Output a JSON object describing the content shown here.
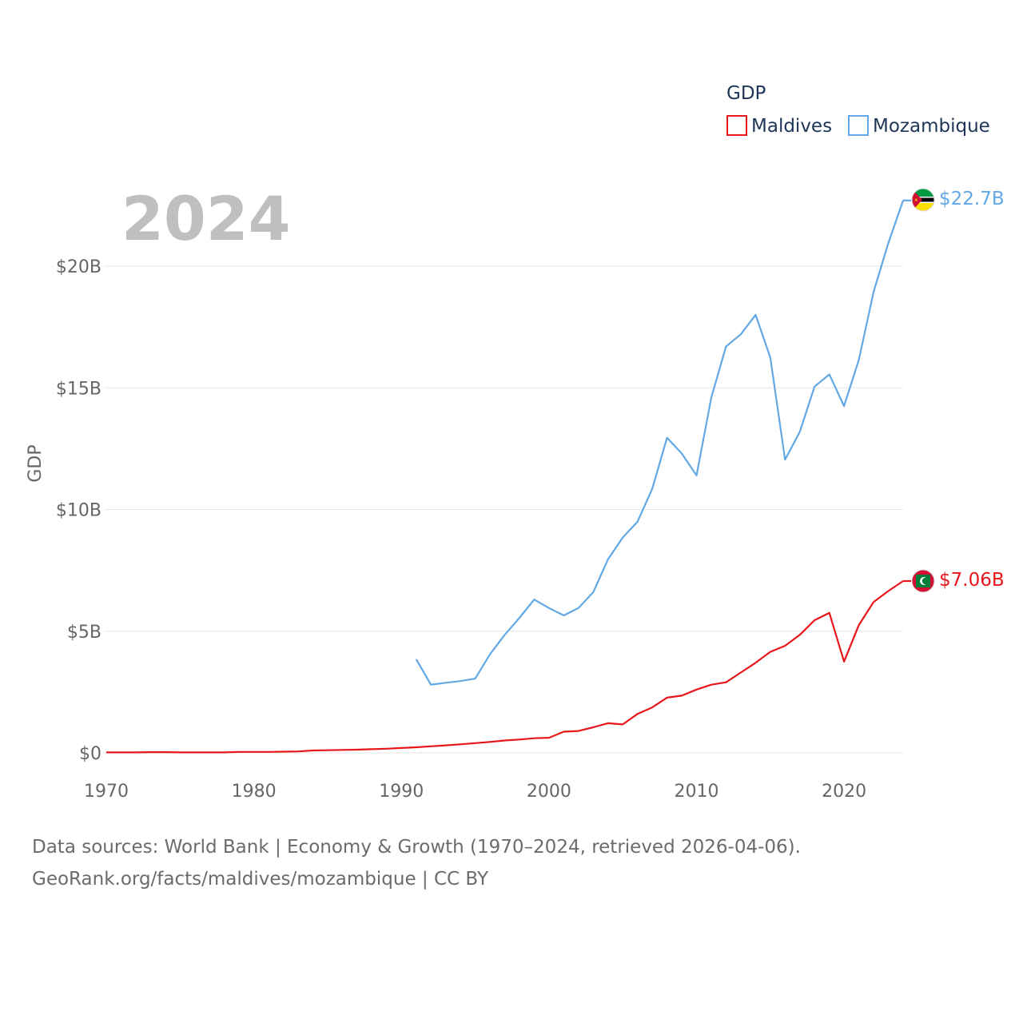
{
  "chart_data": {
    "type": "line",
    "year_label": "2024",
    "ylabel": "GDP",
    "legend_title": "GDP",
    "legend_placement": "top-right",
    "xlim": [
      1970,
      2024
    ],
    "ylim": [
      0,
      23
    ],
    "x_ticks": [
      1970,
      1980,
      1990,
      2000,
      2010,
      2020
    ],
    "x_tick_labels": [
      "1970",
      "1980",
      "1990",
      "2000",
      "2010",
      "2020"
    ],
    "y_ticks": [
      0,
      5,
      10,
      15,
      20
    ],
    "y_tick_labels": [
      "$0",
      "$5B",
      "$10B",
      "$15B",
      "$20B"
    ],
    "grid": true,
    "units": "billions USD",
    "series": [
      {
        "name": "Maldives",
        "color": "#e8161a",
        "flag_icon": "maldives-flag-icon",
        "end_label": "$7.06B",
        "points": [
          [
            1970,
            0.02
          ],
          [
            1971,
            0.02
          ],
          [
            1972,
            0.02
          ],
          [
            1973,
            0.03
          ],
          [
            1974,
            0.03
          ],
          [
            1975,
            0.02
          ],
          [
            1976,
            0.02
          ],
          [
            1977,
            0.02
          ],
          [
            1978,
            0.02
          ],
          [
            1979,
            0.04
          ],
          [
            1980,
            0.04
          ],
          [
            1981,
            0.04
          ],
          [
            1982,
            0.05
          ],
          [
            1983,
            0.06
          ],
          [
            1984,
            0.1
          ],
          [
            1985,
            0.11
          ],
          [
            1986,
            0.12
          ],
          [
            1987,
            0.13
          ],
          [
            1988,
            0.15
          ],
          [
            1989,
            0.17
          ],
          [
            1990,
            0.2
          ],
          [
            1991,
            0.23
          ],
          [
            1992,
            0.27
          ],
          [
            1993,
            0.31
          ],
          [
            1994,
            0.35
          ],
          [
            1995,
            0.4
          ],
          [
            1996,
            0.45
          ],
          [
            1997,
            0.51
          ],
          [
            1998,
            0.55
          ],
          [
            1999,
            0.6
          ],
          [
            2000,
            0.62
          ],
          [
            2001,
            0.87
          ],
          [
            2002,
            0.9
          ],
          [
            2003,
            1.05
          ],
          [
            2004,
            1.22
          ],
          [
            2005,
            1.17
          ],
          [
            2006,
            1.6
          ],
          [
            2007,
            1.87
          ],
          [
            2008,
            2.27
          ],
          [
            2009,
            2.35
          ],
          [
            2010,
            2.6
          ],
          [
            2011,
            2.8
          ],
          [
            2012,
            2.9
          ],
          [
            2013,
            3.3
          ],
          [
            2014,
            3.7
          ],
          [
            2015,
            4.15
          ],
          [
            2016,
            4.4
          ],
          [
            2017,
            4.85
          ],
          [
            2018,
            5.45
          ],
          [
            2019,
            5.75
          ],
          [
            2020,
            3.75
          ],
          [
            2021,
            5.25
          ],
          [
            2022,
            6.2
          ],
          [
            2023,
            6.65
          ],
          [
            2024,
            7.06
          ]
        ]
      },
      {
        "name": "Mozambique",
        "color": "#62a8e5",
        "flag_icon": "mozambique-flag-icon",
        "end_label": "$22.7B",
        "points": [
          [
            1991,
            3.85
          ],
          [
            1992,
            2.8
          ],
          [
            1993,
            2.88
          ],
          [
            1994,
            2.95
          ],
          [
            1995,
            3.05
          ],
          [
            1996,
            4.05
          ],
          [
            1997,
            4.85
          ],
          [
            1998,
            5.55
          ],
          [
            1999,
            6.3
          ],
          [
            2000,
            5.95
          ],
          [
            2001,
            5.65
          ],
          [
            2002,
            5.95
          ],
          [
            2003,
            6.6
          ],
          [
            2004,
            7.95
          ],
          [
            2005,
            8.85
          ],
          [
            2006,
            9.5
          ],
          [
            2007,
            10.85
          ],
          [
            2008,
            12.95
          ],
          [
            2009,
            12.3
          ],
          [
            2010,
            11.4
          ],
          [
            2011,
            14.6
          ],
          [
            2012,
            16.7
          ],
          [
            2013,
            17.2
          ],
          [
            2014,
            18.0
          ],
          [
            2015,
            16.25
          ],
          [
            2016,
            12.05
          ],
          [
            2017,
            13.2
          ],
          [
            2018,
            15.05
          ],
          [
            2019,
            15.55
          ],
          [
            2020,
            14.25
          ],
          [
            2021,
            16.15
          ],
          [
            2022,
            18.95
          ],
          [
            2023,
            20.95
          ],
          [
            2024,
            22.7
          ]
        ]
      }
    ]
  },
  "footer": {
    "sources_line": "Data sources: World Bank | Economy & Growth (1970–2024, retrieved 2026-04-06).",
    "attribution_line": "GeoRank.org/facts/maldives/mozambique | CC BY"
  },
  "colors": {
    "maldives_flag_red": "#d21034",
    "maldives_flag_green": "#007e3a",
    "mozambique_flag_green": "#009a44",
    "mozambique_flag_black": "#000000",
    "mozambique_flag_yellow": "#fce100",
    "mozambique_flag_red": "#d21034"
  }
}
